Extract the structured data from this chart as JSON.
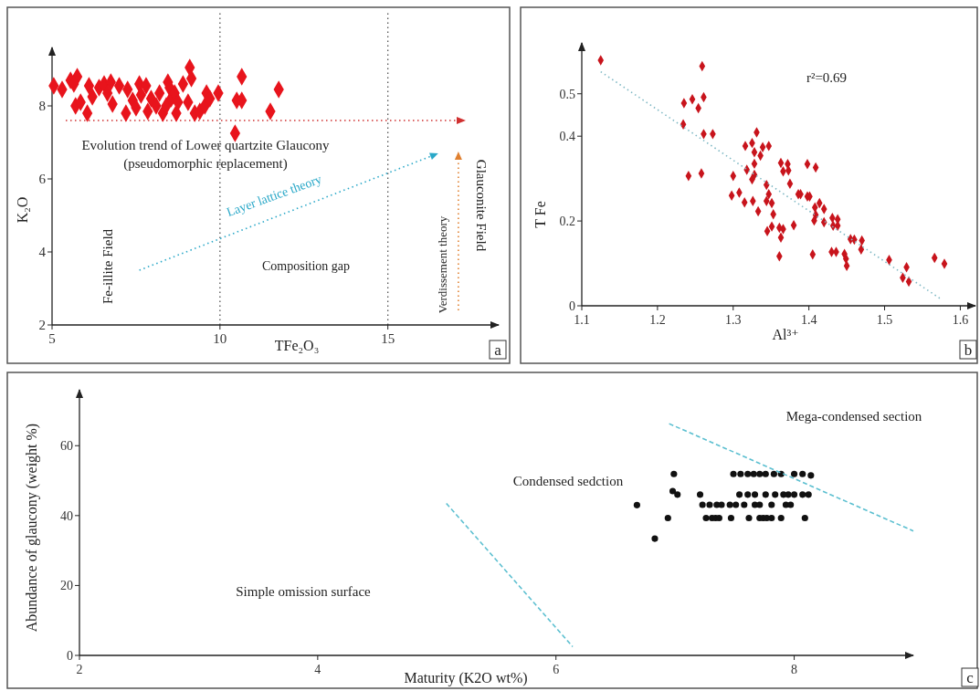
{
  "chart_data": [
    {
      "type": "scatter",
      "xlabel": "TFe₂O₃",
      "ylabel": "K₂O",
      "xlim": [
        5,
        18.3
      ],
      "ylim": [
        2,
        9.6
      ],
      "xticks": [
        5,
        10,
        15
      ],
      "yticks": [
        2,
        4,
        6,
        8
      ],
      "ref_lines": [
        {
          "axis": "y",
          "value": 7.6,
          "color": "#d03030",
          "line_style": "dotted"
        },
        {
          "axis": "x",
          "value": 10,
          "color": "#555555",
          "line_style": "dotted"
        },
        {
          "axis": "x",
          "value": 15,
          "color": "#555555",
          "line_style": "dotted"
        }
      ],
      "annotations": [
        "Evolution trend of Lower quartzite Glaucony\n(pseudomorphic replacement)",
        "Layer lattice theory",
        "Fe-illite Field",
        "Composition gap",
        "Verdissement theory",
        "Glauconite Field",
        "a"
      ],
      "series": [
        {
          "color": "#e8141c",
          "marker": "diamond",
          "x": [
            5.05,
            5.3,
            5.55,
            5.75,
            5.65,
            5.7,
            5.85,
            6.05,
            6.1,
            6.2,
            6.4,
            6.55,
            6.75,
            6.65,
            6.8,
            7.0,
            7.2,
            7.25,
            7.4,
            7.5,
            7.6,
            7.65,
            7.8,
            7.85,
            7.95,
            8.1,
            8.2,
            8.3,
            8.45,
            8.5,
            8.4,
            8.55,
            8.65,
            8.7,
            8.75,
            8.9,
            9.05,
            9.1,
            9.15,
            9.25,
            9.4,
            9.55,
            9.6,
            9.7,
            9.95,
            10.45,
            10.5,
            10.65,
            10.65,
            11.5,
            11.75
          ],
          "values": [
            8.55,
            8.45,
            8.7,
            8.8,
            8.6,
            8.0,
            8.1,
            7.8,
            8.55,
            8.25,
            8.5,
            8.6,
            8.65,
            8.35,
            8.05,
            8.55,
            7.8,
            8.45,
            8.15,
            7.95,
            8.6,
            8.3,
            8.55,
            7.85,
            8.2,
            8.0,
            8.35,
            7.8,
            8.65,
            8.5,
            8.0,
            8.2,
            8.35,
            7.8,
            8.1,
            8.6,
            8.1,
            9.05,
            8.75,
            7.8,
            7.85,
            8.0,
            8.35,
            8.2,
            8.35,
            7.25,
            8.15,
            8.8,
            8.15,
            7.85,
            8.45
          ]
        }
      ]
    },
    {
      "type": "scatter",
      "xlabel": "Al³⁺",
      "ylabel": "T Fe",
      "xlim": [
        1.1,
        1.62
      ],
      "ylim": [
        0,
        0.62
      ],
      "xticks": [
        1.1,
        1.2,
        1.3,
        1.4,
        1.5,
        1.6
      ],
      "yticks": [
        0,
        0.2,
        0.4,
        0.5
      ],
      "annotations": [
        "r²=0.69",
        "b"
      ],
      "series": [
        {
          "color": "#c8141c",
          "marker": "diamond",
          "x": [
            1.125,
            1.259,
            1.235,
            1.246,
            1.254,
            1.261,
            1.234,
            1.261,
            1.273,
            1.241,
            1.258,
            1.331,
            1.316,
            1.325,
            1.347,
            1.339,
            1.328,
            1.336,
            1.328,
            1.318,
            1.325,
            1.328,
            1.3,
            1.298,
            1.308,
            1.315,
            1.326,
            1.333,
            1.344,
            1.347,
            1.344,
            1.351,
            1.353,
            1.345,
            1.351,
            1.361,
            1.366,
            1.363,
            1.361,
            1.363,
            1.372,
            1.366,
            1.373,
            1.375,
            1.38,
            1.386,
            1.389,
            1.398,
            1.401,
            1.398,
            1.409,
            1.414,
            1.408,
            1.409,
            1.407,
            1.42,
            1.42,
            1.405,
            1.431,
            1.438,
            1.432,
            1.438,
            1.43,
            1.436,
            1.447,
            1.449,
            1.45,
            1.455,
            1.46,
            1.47,
            1.469,
            1.506,
            1.524,
            1.529,
            1.532,
            1.566,
            1.579
          ],
          "values": [
            0.579,
            0.565,
            0.478,
            0.487,
            0.466,
            0.492,
            0.428,
            0.405,
            0.405,
            0.306,
            0.312,
            0.409,
            0.377,
            0.384,
            0.377,
            0.374,
            0.362,
            0.354,
            0.335,
            0.321,
            0.298,
            0.309,
            0.306,
            0.26,
            0.267,
            0.244,
            0.247,
            0.223,
            0.285,
            0.263,
            0.247,
            0.242,
            0.216,
            0.176,
            0.187,
            0.184,
            0.181,
            0.161,
            0.117,
            0.337,
            0.334,
            0.317,
            0.319,
            0.288,
            0.19,
            0.263,
            0.263,
            0.258,
            0.258,
            0.334,
            0.326,
            0.242,
            0.232,
            0.214,
            0.201,
            0.228,
            0.197,
            0.121,
            0.207,
            0.204,
            0.189,
            0.189,
            0.127,
            0.127,
            0.122,
            0.111,
            0.094,
            0.157,
            0.156,
            0.154,
            0.133,
            0.108,
            0.066,
            0.091,
            0.057,
            0.113,
            0.099
          ]
        },
        {
          "type": "line",
          "color": "#7fb8c4",
          "line_style": "dotted",
          "x": [
            1.125,
            1.576
          ],
          "values": [
            0.552,
            0.014
          ]
        }
      ]
    },
    {
      "type": "scatter",
      "xlabel": "Maturity (K2O wt%)",
      "ylabel": "Abundance of glaucony (weight %)",
      "xlim": [
        2,
        9
      ],
      "ylim": [
        0,
        76
      ],
      "xticks": [
        2,
        4,
        6,
        8
      ],
      "yticks": [
        0,
        20,
        40,
        60
      ],
      "annotations": [
        "Mega-condensed section",
        "Condensed sedction",
        "Simple omission surface",
        "c"
      ],
      "series": [
        {
          "color": "#111111",
          "marker": "circle",
          "x": [
            6.99,
            7.49,
            7.55,
            7.61,
            7.66,
            7.71,
            7.76,
            7.83,
            7.89,
            8.0,
            8.07,
            8.14,
            6.98,
            7.02,
            7.21,
            7.54,
            7.61,
            7.67,
            7.76,
            7.84,
            7.91,
            7.95,
            8.0,
            8.07,
            8.12,
            6.68,
            7.23,
            7.29,
            7.35,
            7.39,
            7.46,
            7.51,
            7.58,
            7.67,
            7.71,
            7.81,
            7.93,
            7.97,
            6.94,
            7.26,
            7.31,
            7.34,
            7.37,
            7.47,
            7.62,
            7.71,
            7.74,
            7.77,
            7.81,
            7.89,
            8.09,
            6.83
          ],
          "values": [
            51.9,
            51.9,
            51.9,
            51.9,
            51.9,
            51.9,
            51.9,
            51.9,
            51.9,
            51.9,
            51.9,
            51.5,
            47,
            46,
            46,
            46,
            46,
            46,
            46,
            46,
            46,
            46,
            46,
            46,
            46,
            43,
            43.1,
            43.1,
            43.1,
            43.1,
            43.1,
            43.1,
            43.1,
            43.1,
            43.1,
            43.1,
            43.1,
            43.1,
            39.3,
            39.3,
            39.3,
            39.3,
            39.3,
            39.3,
            39.3,
            39.3,
            39.3,
            39.3,
            39.3,
            39.3,
            39.3,
            33.4
          ]
        },
        {
          "type": "line",
          "color": "#5bbfd0",
          "line_style": "dashed",
          "x": [
            5.08,
            6.14
          ],
          "values": [
            43.5,
            2.5
          ]
        },
        {
          "type": "line",
          "color": "#5bbfd0",
          "line_style": "dashed",
          "x": [
            6.95,
            9.0
          ],
          "values": [
            66.3,
            35.6
          ]
        }
      ]
    }
  ]
}
